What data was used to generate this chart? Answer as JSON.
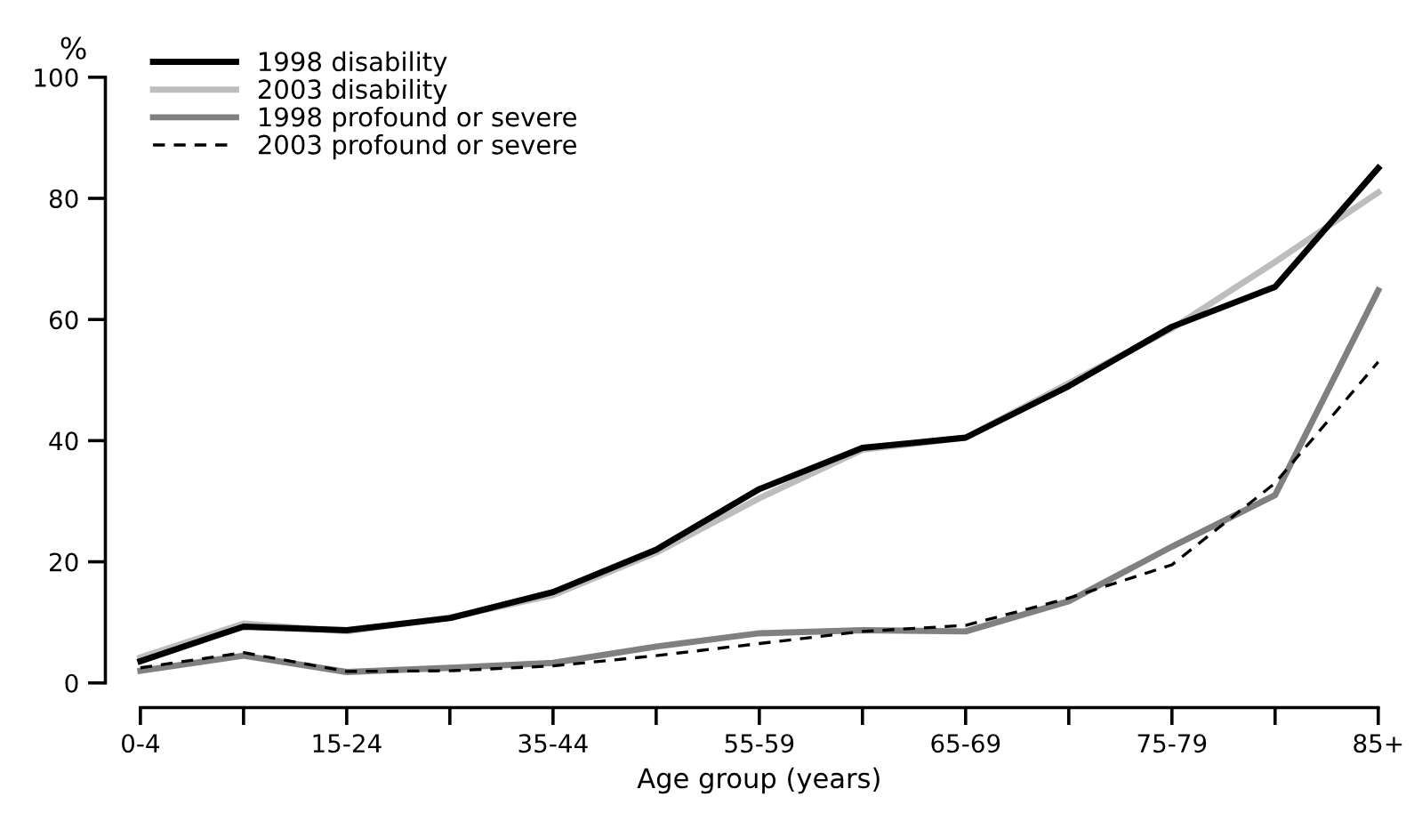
{
  "chart_data": {
    "type": "line",
    "xlabel": "Age group (years)",
    "ylabel": "%",
    "categories": [
      "0-4",
      null,
      "15-24",
      null,
      "35-44",
      null,
      "55-59",
      null,
      "65-69",
      null,
      "75-79",
      null,
      "85+"
    ],
    "series": [
      {
        "name": "1998 disability",
        "color": "#000000",
        "values": [
          3.6,
          9.3,
          8.7,
          10.7,
          15,
          22,
          32,
          38.8,
          40.5,
          49,
          58.8,
          65.4,
          85
        ]
      },
      {
        "name": "2003 disability",
        "color": "#bdbdbd",
        "values": [
          4.2,
          9.8,
          8.5,
          10.8,
          14.5,
          21.5,
          30.5,
          38.5,
          40.5,
          49.5,
          58.5,
          69.5,
          81
        ]
      },
      {
        "name": "1998 profound or severe",
        "color": "#808080",
        "values": [
          2.0,
          4.5,
          1.8,
          2.5,
          3.3,
          6,
          8.2,
          8.7,
          8.5,
          13.5,
          22.5,
          31,
          64.8
        ]
      },
      {
        "name": "2003 profound or severe",
        "color": "#000000",
        "line_style": "dashed",
        "values": [
          2.5,
          5,
          1.9,
          2,
          2.8,
          4.5,
          6.5,
          8.5,
          9.5,
          14,
          19.5,
          33,
          53
        ]
      }
    ],
    "ylim": [
      0,
      100
    ],
    "yticks": [
      0,
      20,
      40,
      60,
      80,
      100
    ],
    "grid": false,
    "legend": "top left",
    "marker": "none"
  }
}
